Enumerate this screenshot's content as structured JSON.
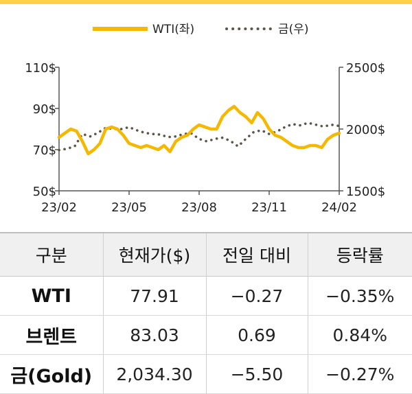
{
  "chart_data": {
    "type": "line",
    "x_ticks": [
      "23/02",
      "23/05",
      "23/08",
      "23/11",
      "24/02"
    ],
    "y_left_ticks": [
      "110$",
      "90$",
      "70$",
      "50$"
    ],
    "y_right_ticks": [
      "2500$",
      "2000$",
      "1500$"
    ],
    "y_left_range": [
      50,
      110
    ],
    "y_right_range": [
      1500,
      2500
    ],
    "grid": false,
    "legend_position": "top-center",
    "series": [
      {
        "name": "WTI(좌)",
        "axis": "left",
        "color": "#f5b800",
        "style": "solid",
        "x": [
          "23/02",
          "23/02",
          "23/02",
          "23/02",
          "23/03",
          "23/03",
          "23/03",
          "23/03",
          "23/04",
          "23/04",
          "23/04",
          "23/04",
          "23/05",
          "23/05",
          "23/05",
          "23/05",
          "23/06",
          "23/06",
          "23/06",
          "23/06",
          "23/07",
          "23/07",
          "23/07",
          "23/07",
          "23/08",
          "23/08",
          "23/08",
          "23/08",
          "23/09",
          "23/09",
          "23/09",
          "23/09",
          "23/10",
          "23/10",
          "23/10",
          "23/10",
          "23/11",
          "23/11",
          "23/11",
          "23/11",
          "23/12",
          "23/12",
          "23/12",
          "23/12",
          "24/01",
          "24/01",
          "24/01",
          "24/01",
          "24/02"
        ],
        "values": [
          76,
          78,
          80,
          79,
          74,
          68,
          70,
          73,
          80,
          81,
          80,
          77,
          73,
          72,
          71,
          72,
          71,
          70,
          72,
          69,
          74,
          76,
          77,
          80,
          82,
          81,
          80,
          80,
          86,
          89,
          91,
          88,
          86,
          83,
          88,
          85,
          80,
          77,
          76,
          74,
          72,
          71,
          71,
          72,
          72,
          71,
          75,
          77,
          78
        ]
      },
      {
        "name": "금(우)",
        "axis": "right",
        "color": "#5e5549",
        "style": "dotted",
        "x": [
          "23/02",
          "23/02",
          "23/02",
          "23/03",
          "23/03",
          "23/03",
          "23/04",
          "23/04",
          "23/04",
          "23/05",
          "23/05",
          "23/05",
          "23/06",
          "23/06",
          "23/06",
          "23/07",
          "23/07",
          "23/07",
          "23/08",
          "23/08",
          "23/08",
          "23/09",
          "23/09",
          "23/09",
          "23/10",
          "23/10",
          "23/10",
          "23/11",
          "23/11",
          "23/11",
          "23/12",
          "23/12",
          "23/12",
          "24/01",
          "24/01",
          "24/01",
          "24/02"
        ],
        "values": [
          1830,
          1840,
          1860,
          1960,
          1940,
          1970,
          2010,
          2000,
          2000,
          2015,
          1990,
          1970,
          1960,
          1955,
          1935,
          1940,
          1960,
          1965,
          1920,
          1900,
          1920,
          1930,
          1905,
          1860,
          1920,
          1975,
          1990,
          1960,
          1980,
          2015,
          2040,
          2030,
          2050,
          2035,
          2020,
          2035,
          2025
        ]
      }
    ]
  },
  "table": {
    "headers": [
      "구분",
      "현재가($)",
      "전일 대비",
      "등락률"
    ],
    "rows": [
      [
        "WTI",
        "77.91",
        "−0.27",
        "−0.35%"
      ],
      [
        "브렌트",
        "83.03",
        "0.69",
        "0.84%"
      ],
      [
        "금(Gold)",
        "2,034.30",
        "−5.50",
        "−0.27%"
      ]
    ]
  }
}
